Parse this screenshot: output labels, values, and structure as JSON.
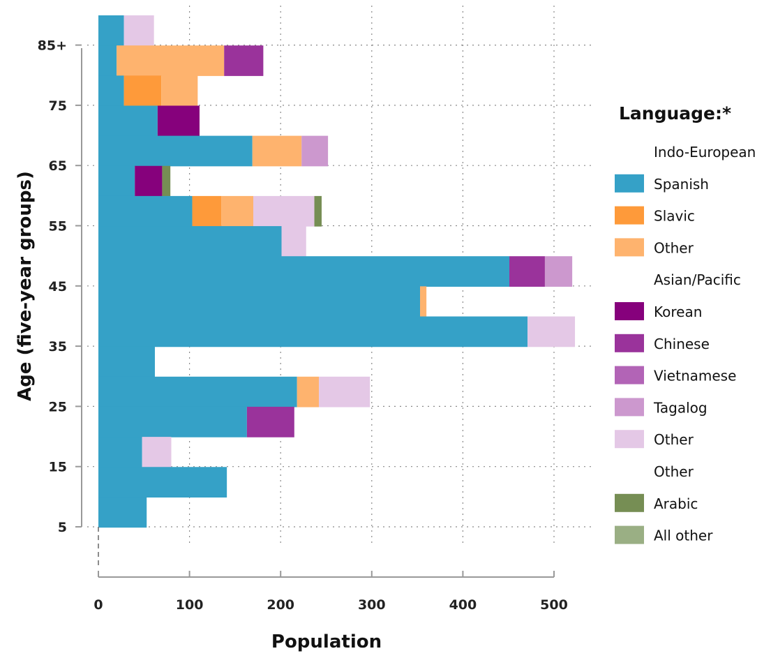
{
  "chart_data": {
    "type": "bar",
    "orientation": "horizontal",
    "stacked": true,
    "xlabel": "Population",
    "ylabel": "Age (five-year groups)",
    "xlim": [
      0,
      530
    ],
    "x_ticks": [
      0,
      100,
      200,
      300,
      400,
      500
    ],
    "y_ticks": [
      "5",
      "15",
      "25",
      "35",
      "45",
      "55",
      "65",
      "75",
      "85+"
    ],
    "grid": true,
    "legend_position": "right",
    "legend_title": "Language:*",
    "legend": [
      {
        "label": "Indo-European",
        "group": true
      },
      {
        "label": "Spanish",
        "color": "#35a1c7"
      },
      {
        "label": "Slavic",
        "color": "#fe9a3a"
      },
      {
        "label": "Other",
        "color": "#feb36e"
      },
      {
        "label": "Asian/Pacific",
        "group": true
      },
      {
        "label": "Korean",
        "color": "#86017c"
      },
      {
        "label": "Chinese",
        "color": "#9a339b"
      },
      {
        "label": "Vietnamese",
        "color": "#b264b6"
      },
      {
        "label": "Tagalog",
        "color": "#cc98ce"
      },
      {
        "label": "Other",
        "color": "#e4c8e6"
      },
      {
        "label": "Other",
        "group": true
      },
      {
        "label": "Arabic",
        "color": "#768e54"
      },
      {
        "label": "All other",
        "color": "#9aaf84"
      }
    ],
    "categories": [
      "85+",
      "80",
      "75",
      "70",
      "65",
      "60",
      "55",
      "50",
      "45",
      "40",
      "35",
      "30",
      "25",
      "20",
      "15",
      "10",
      "5"
    ],
    "series": [
      {
        "name": "Spanish",
        "values": [
          28,
          20,
          28,
          65,
          169,
          40,
          103,
          201,
          451,
          353,
          471,
          62,
          218,
          163,
          48,
          141,
          53
        ]
      },
      {
        "name": "Slavic",
        "values": [
          0,
          0,
          41,
          0,
          0,
          0,
          32,
          0,
          0,
          0,
          0,
          0,
          0,
          0,
          0,
          0,
          0
        ]
      },
      {
        "name": "Other",
        "values": [
          0,
          118,
          40,
          0,
          54,
          0,
          35,
          0,
          0,
          7,
          0,
          0,
          24,
          0,
          0,
          0,
          0
        ]
      },
      {
        "name": "Korean",
        "values": [
          0,
          0,
          0,
          46,
          0,
          30,
          0,
          0,
          0,
          0,
          0,
          0,
          0,
          0,
          0,
          0,
          0
        ]
      },
      {
        "name": "Chinese",
        "values": [
          0,
          43,
          0,
          0,
          0,
          0,
          0,
          0,
          39,
          0,
          0,
          0,
          0,
          52,
          0,
          0,
          0
        ]
      },
      {
        "name": "Vietnamese",
        "values": [
          0,
          0,
          0,
          0,
          0,
          0,
          0,
          0,
          0,
          0,
          0,
          0,
          0,
          0,
          0,
          0,
          0
        ]
      },
      {
        "name": "Tagalog",
        "values": [
          0,
          0,
          0,
          0,
          29,
          0,
          0,
          0,
          30,
          0,
          0,
          0,
          0,
          0,
          0,
          0,
          0
        ]
      },
      {
        "name": "Other",
        "values": [
          33,
          0,
          0,
          0,
          0,
          0,
          67,
          27,
          0,
          0,
          52,
          0,
          56,
          0,
          32,
          0,
          0
        ]
      },
      {
        "name": "Arabic",
        "values": [
          0,
          0,
          0,
          0,
          0,
          9,
          8,
          0,
          0,
          0,
          0,
          0,
          0,
          0,
          0,
          0,
          0
        ]
      },
      {
        "name": "All other",
        "values": [
          0,
          0,
          0,
          0,
          0,
          0,
          0,
          0,
          0,
          0,
          0,
          0,
          0,
          0,
          0,
          0,
          0
        ]
      }
    ]
  }
}
